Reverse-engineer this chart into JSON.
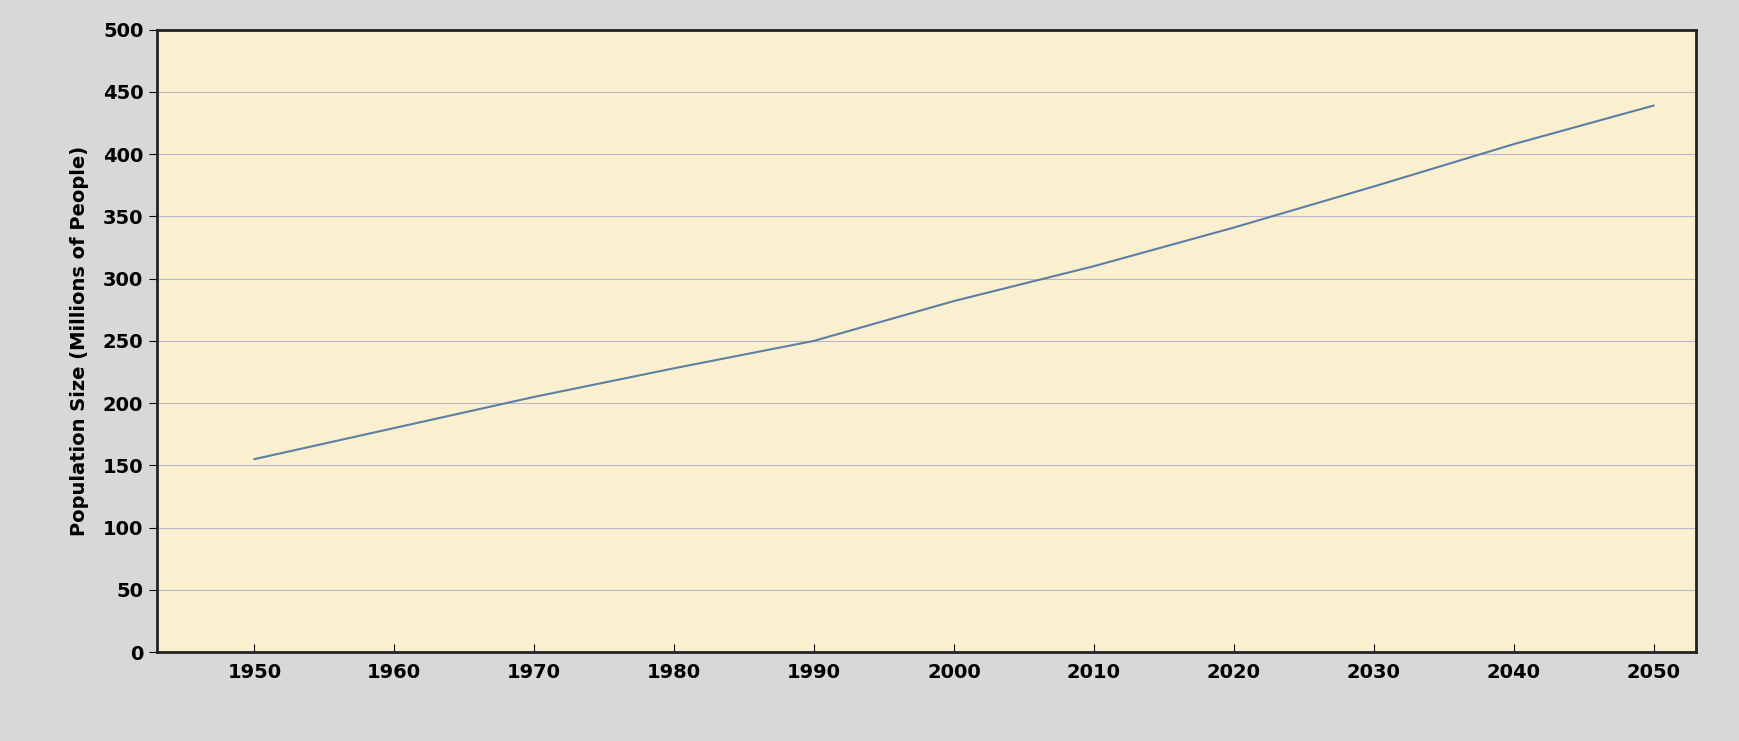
{
  "xlabel": "",
  "ylabel": "Population Size (Millions of People)",
  "plot_bg_color": "#FAF0D0",
  "figure_bg_color": "#D8D8D8",
  "line_color": "#5B7FA6",
  "line_width": 1.5,
  "x_data": [
    1950,
    1960,
    1970,
    1980,
    1990,
    2000,
    2010,
    2020,
    2030,
    2040,
    2050
  ],
  "y_data": [
    155,
    180,
    205,
    228,
    250,
    282,
    310,
    341,
    374,
    408,
    439
  ],
  "ylim": [
    0,
    500
  ],
  "xlim": [
    1943,
    2053
  ],
  "yticks": [
    0,
    50,
    100,
    150,
    200,
    250,
    300,
    350,
    400,
    450,
    500
  ],
  "xticks": [
    1950,
    1960,
    1970,
    1980,
    1990,
    2000,
    2010,
    2020,
    2030,
    2040,
    2050
  ],
  "grid_color": "#B8B8C8",
  "grid_linewidth": 0.8,
  "ylabel_fontsize": 14,
  "tick_fontsize": 14,
  "spine_color": "#222222",
  "spine_linewidth": 2.0
}
